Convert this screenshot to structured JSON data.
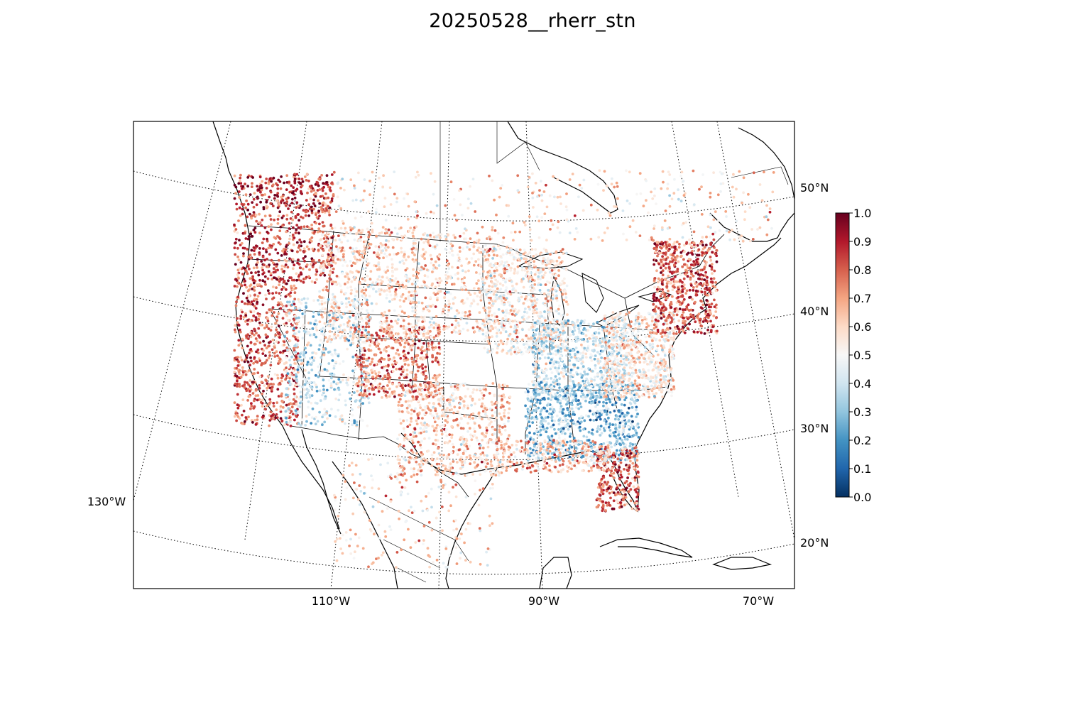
{
  "title": "20250528__rherr_stn",
  "map": {
    "projection": "lambert-conformal",
    "meridians": [
      {
        "label": "130°W"
      },
      {
        "label": "110°W"
      },
      {
        "label": "90°W"
      },
      {
        "label": "70°W"
      }
    ],
    "parallels": [
      {
        "label": "50°N"
      },
      {
        "label": "40°N"
      },
      {
        "label": "30°N"
      },
      {
        "label": "20°N"
      }
    ],
    "grid_style": "dotted",
    "features": [
      "coastlines",
      "country-borders",
      "state-borders",
      "great-lakes"
    ]
  },
  "colorbar": {
    "colormap": "RdBu_r",
    "min": 0.0,
    "max": 1.0,
    "ticks": [
      "0.0",
      "0.1",
      "0.2",
      "0.3",
      "0.4",
      "0.5",
      "0.6",
      "0.7",
      "0.8",
      "0.9",
      "1.0"
    ],
    "colors": {
      "0.0": "#053061",
      "0.1": "#2166ac",
      "0.2": "#4393c3",
      "0.3": "#92c5de",
      "0.4": "#d1e5f0",
      "0.5": "#f7f7f7",
      "0.6": "#fddbc7",
      "0.7": "#f4a582",
      "0.8": "#d6604d",
      "0.9": "#b2182b",
      "1.0": "#67001f"
    }
  },
  "station_regions": [
    {
      "region": "pacific-northwest",
      "value_tendency": 0.85
    },
    {
      "region": "california-coast",
      "value_tendency": 0.8
    },
    {
      "region": "great-basin",
      "value_tendency": 0.4
    },
    {
      "region": "rockies",
      "value_tendency": 0.6
    },
    {
      "region": "colorado",
      "value_tendency": 0.75
    },
    {
      "region": "northern-plains",
      "value_tendency": 0.6
    },
    {
      "region": "southern-plains",
      "value_tendency": 0.62
    },
    {
      "region": "upper-midwest",
      "value_tendency": 0.55
    },
    {
      "region": "ohio-valley",
      "value_tendency": 0.4
    },
    {
      "region": "southeast",
      "value_tendency": 0.3
    },
    {
      "region": "mid-atlantic",
      "value_tendency": 0.55
    },
    {
      "region": "northeast",
      "value_tendency": 0.8
    },
    {
      "region": "florida",
      "value_tendency": 0.82
    },
    {
      "region": "gulf-coast",
      "value_tendency": 0.65
    },
    {
      "region": "canada",
      "value_tendency": 0.6
    },
    {
      "region": "mexico",
      "value_tendency": 0.6
    }
  ]
}
